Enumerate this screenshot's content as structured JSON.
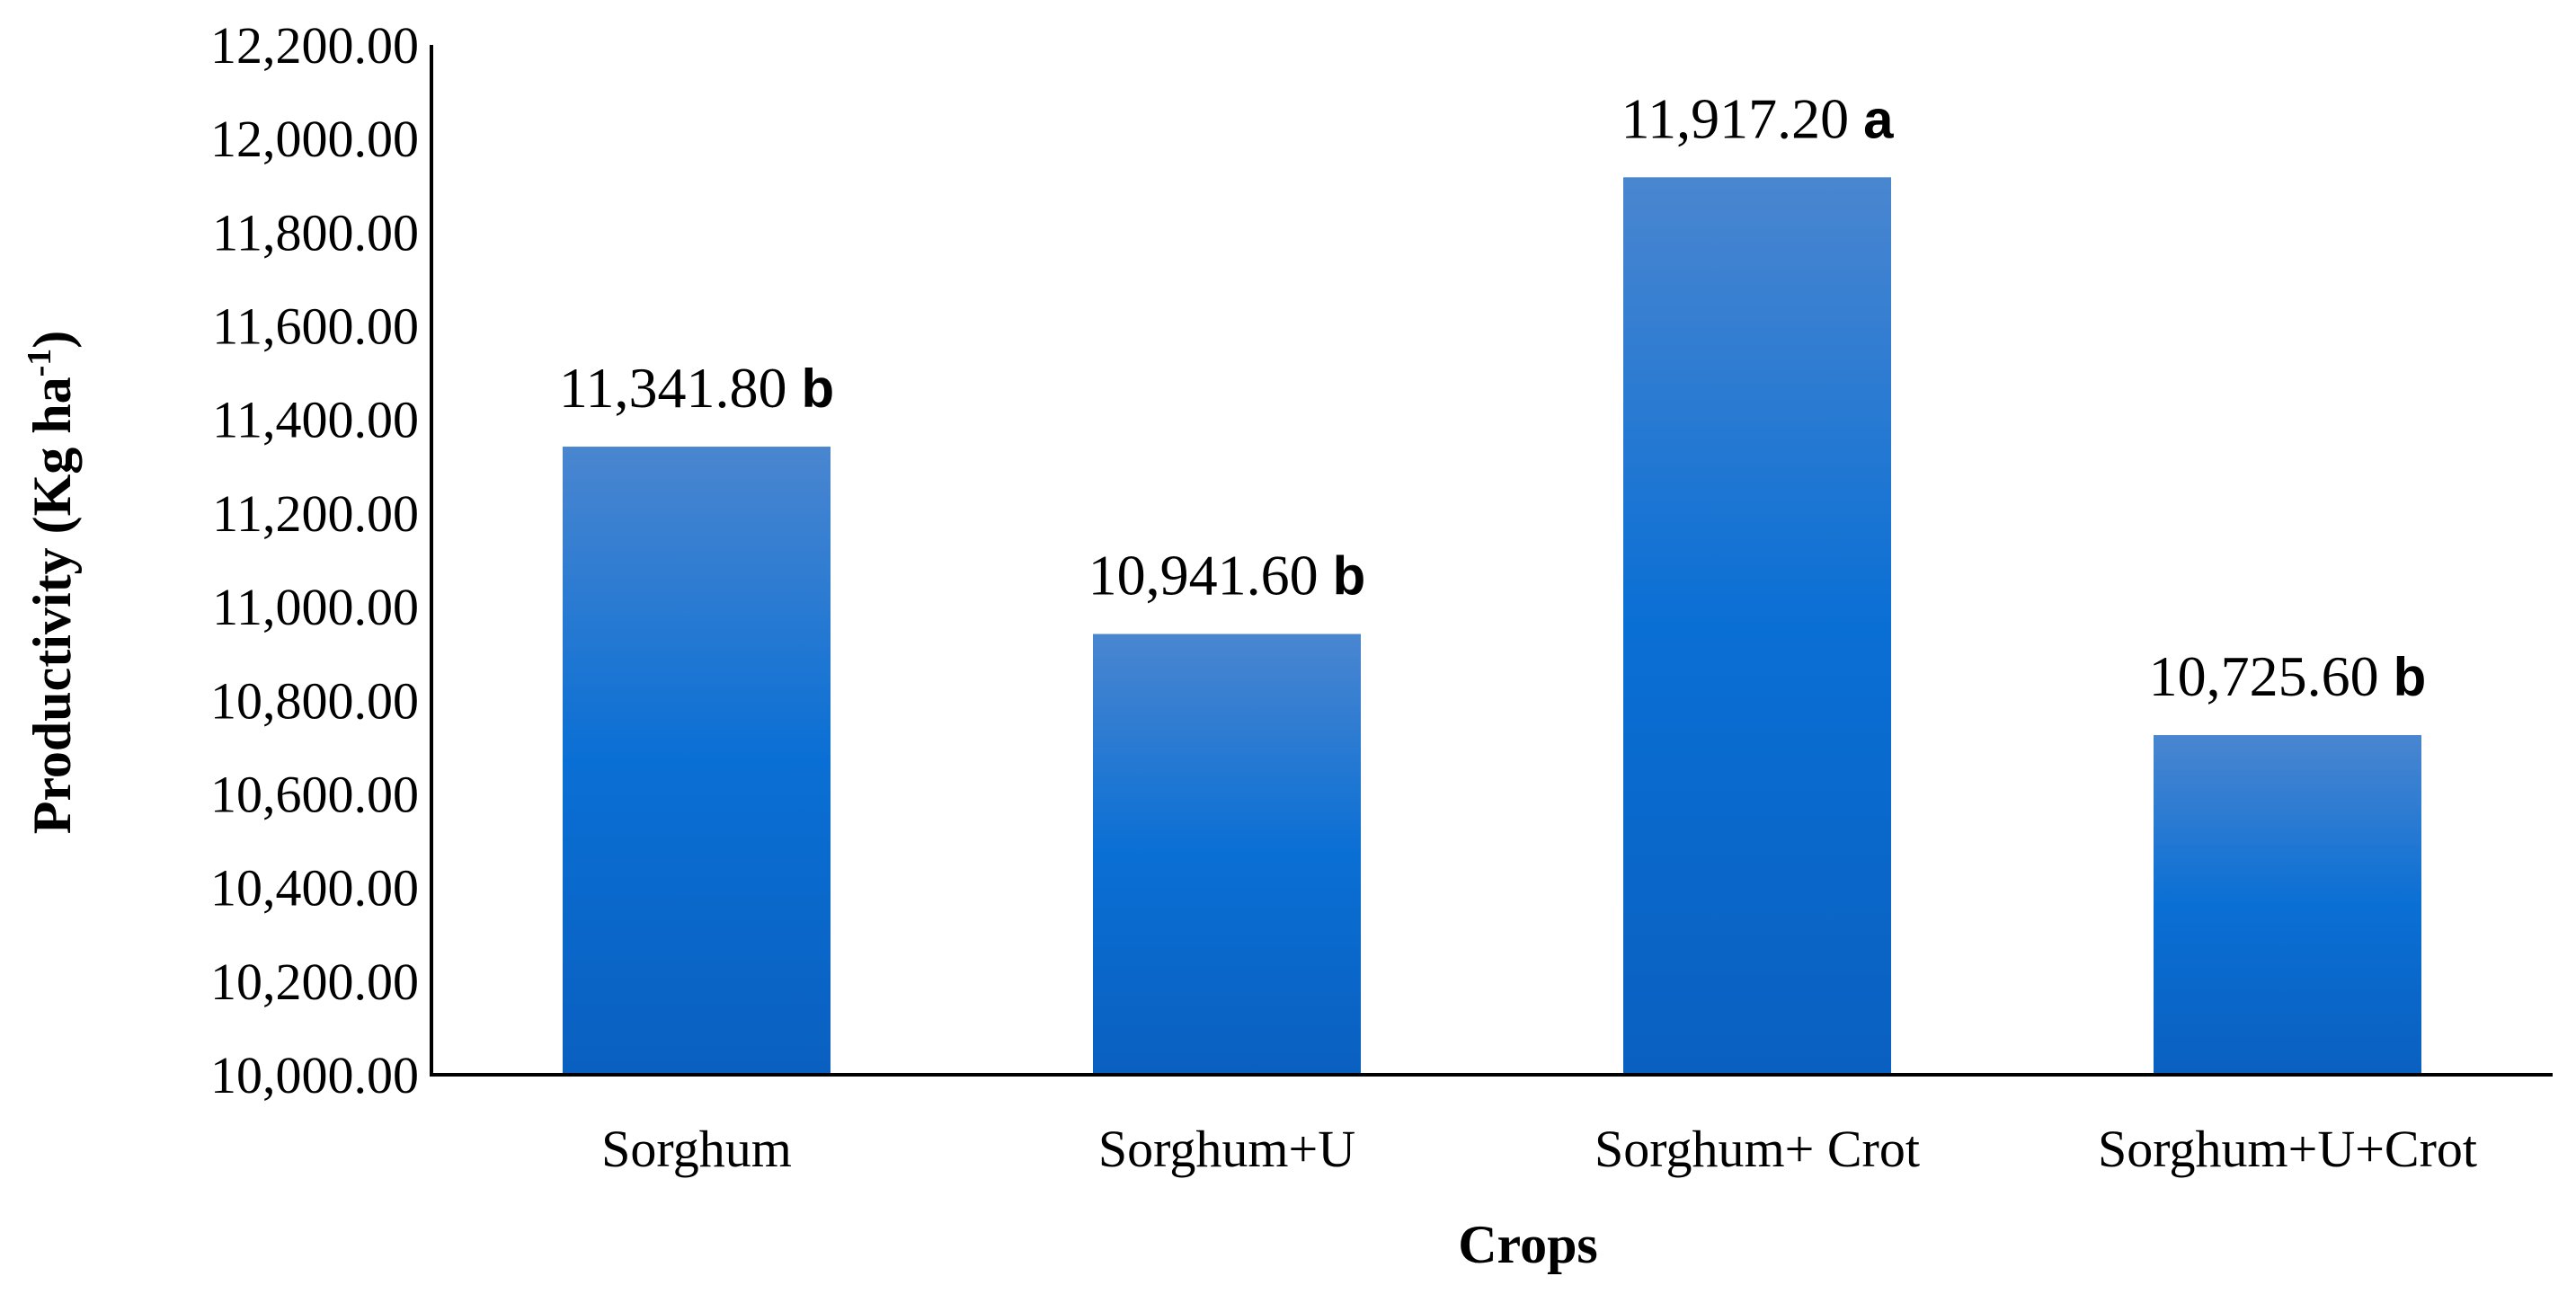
{
  "chart_data": {
    "type": "bar",
    "categories": [
      "Sorghum",
      "Sorghum+U",
      "Sorghum+ Crot",
      "Sorghum+U+Crot"
    ],
    "values": [
      11341.8,
      10941.6,
      11917.2,
      10725.6
    ],
    "value_labels": [
      "11,341.80",
      "10,941.60",
      "11,917.20",
      "10,725.60"
    ],
    "significance_letters": [
      "b",
      "b",
      "a",
      "b"
    ],
    "ylim": [
      10000,
      12200
    ],
    "yticks": [
      10000,
      10200,
      10400,
      10600,
      10800,
      11000,
      11200,
      11400,
      11600,
      11800,
      12000,
      12200
    ],
    "ytick_labels": [
      "10,000.00",
      "10,200.00",
      "10,400.00",
      "10,600.00",
      "10,800.00",
      "11,000.00",
      "11,200.00",
      "11,400.00",
      "11,600.00",
      "11,800.00",
      "12,000.00",
      "12,200.00"
    ],
    "xlabel": "Crops",
    "ylabel": "Productivity (Kg ha",
    "ylabel_superscript": "-1",
    "ylabel_suffix": ")",
    "grid": false,
    "legend": false,
    "colors": {
      "bar_top": "#4a86d0",
      "bar_mid": "#0a6fd4",
      "bar_bottom": "#0a60c0"
    }
  }
}
